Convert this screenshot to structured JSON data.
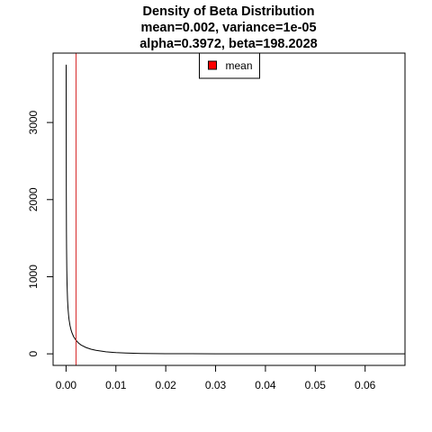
{
  "chart_data": {
    "type": "line",
    "title_lines": [
      "Density of Beta Distribution",
      "mean=0.002, variance=1e-05",
      "alpha=0.3972, beta=198.2028"
    ],
    "xlabel": "",
    "ylabel": "",
    "xlim": [
      -0.0026,
      0.068
    ],
    "ylim": [
      -150,
      3900
    ],
    "x_ticks": [
      {
        "value": 0.0,
        "label": "0.00"
      },
      {
        "value": 0.01,
        "label": "0.01"
      },
      {
        "value": 0.02,
        "label": "0.02"
      },
      {
        "value": 0.03,
        "label": "0.03"
      },
      {
        "value": 0.04,
        "label": "0.04"
      },
      {
        "value": 0.05,
        "label": "0.05"
      },
      {
        "value": 0.06,
        "label": "0.06"
      }
    ],
    "y_ticks": [
      {
        "value": 0,
        "label": "0"
      },
      {
        "value": 1000,
        "label": "1000"
      },
      {
        "value": 2000,
        "label": "2000"
      },
      {
        "value": 3000,
        "label": "3000"
      }
    ],
    "series": [
      {
        "color": "#000000",
        "x": [
          2e-05,
          3e-05,
          5e-05,
          8e-05,
          0.0001,
          0.00015,
          0.0002,
          0.0003,
          0.0004,
          0.0005,
          0.0006,
          0.0008,
          0.001,
          0.0012,
          0.0015,
          0.002,
          0.0025,
          0.003,
          0.004,
          0.005,
          0.006,
          0.008,
          0.01,
          0.012,
          0.015,
          0.02,
          0.025,
          0.03,
          0.04,
          0.05,
          0.06,
          0.068
        ],
        "y": [
          3750,
          2900,
          2110,
          1580,
          1380,
          1080,
          900,
          700,
          585,
          505,
          445,
          365,
          310,
          270,
          225,
          175,
          140,
          115,
          82,
          60,
          45,
          27,
          16,
          10,
          5,
          2,
          1,
          0.5,
          0.1,
          0.02,
          0,
          0
        ]
      }
    ],
    "vlines": [
      {
        "x": 0.002,
        "color": "#d62728"
      }
    ],
    "legend": {
      "position": "top-center",
      "entries": [
        {
          "label": "mean",
          "color": "#ff0000"
        }
      ]
    },
    "grid": false
  }
}
